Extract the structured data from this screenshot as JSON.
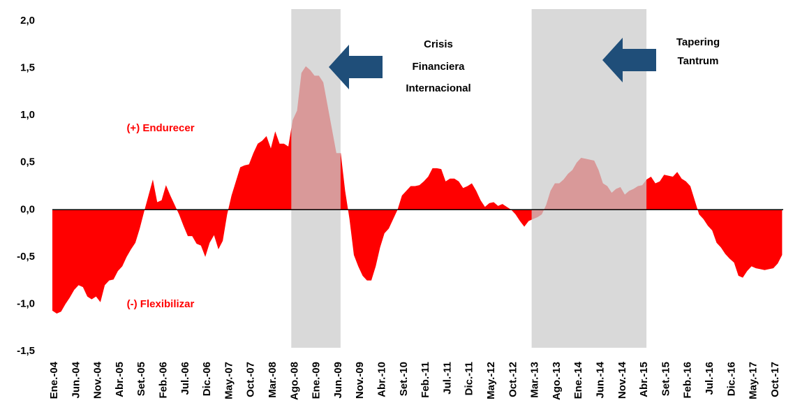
{
  "chart_data": {
    "type": "area",
    "categories": [
      "Ene.-04",
      null,
      null,
      null,
      null,
      "Jun.-04",
      null,
      null,
      null,
      null,
      "Nov.-04",
      null,
      null,
      null,
      null,
      "Abr.-05",
      null,
      null,
      null,
      null,
      "Set.-05",
      null,
      null,
      null,
      null,
      "Feb.-06",
      null,
      null,
      null,
      null,
      "Jul.-06",
      null,
      null,
      null,
      null,
      "Dic.-06",
      null,
      null,
      null,
      null,
      "May.-07",
      null,
      null,
      null,
      null,
      "Oct.-07",
      null,
      null,
      null,
      null,
      "Mar.-08",
      null,
      null,
      null,
      null,
      "Ago.-08",
      null,
      null,
      null,
      null,
      "Ene.-09",
      null,
      null,
      null,
      null,
      "Jun.-09",
      null,
      null,
      null,
      null,
      "Nov.-09",
      null,
      null,
      null,
      null,
      "Abr.-10",
      null,
      null,
      null,
      null,
      "Set.-10",
      null,
      null,
      null,
      null,
      "Feb.-11",
      null,
      null,
      null,
      null,
      "Jul.-11",
      null,
      null,
      null,
      null,
      "Dic.-11",
      null,
      null,
      null,
      null,
      "May.-12",
      null,
      null,
      null,
      null,
      "Oct.-12",
      null,
      null,
      null,
      null,
      "Mar.-13",
      null,
      null,
      null,
      null,
      "Ago.-13",
      null,
      null,
      null,
      null,
      "Ene.-14",
      null,
      null,
      null,
      null,
      "Jun.-14",
      null,
      null,
      null,
      null,
      "Nov.-14",
      null,
      null,
      null,
      null,
      "Abr.-15",
      null,
      null,
      null,
      null,
      "Set.-15",
      null,
      null,
      null,
      null,
      "Feb.-16",
      null,
      null,
      null,
      null,
      "Jul.-16",
      null,
      null,
      null,
      null,
      "Dic.-16",
      null,
      null,
      null,
      null,
      "May.-17",
      null,
      null,
      null,
      null,
      "Oct.-17",
      null,
      null
    ],
    "values": [
      -1.07,
      -1.1,
      -1.08,
      -1.0,
      -0.93,
      -0.85,
      -0.8,
      -0.82,
      -0.92,
      -0.95,
      -0.92,
      -0.98,
      -0.8,
      -0.75,
      -0.74,
      -0.65,
      -0.6,
      -0.5,
      -0.42,
      -0.35,
      -0.2,
      -0.02,
      0.15,
      0.32,
      0.08,
      0.1,
      0.26,
      0.15,
      0.05,
      -0.05,
      -0.17,
      -0.28,
      -0.28,
      -0.36,
      -0.38,
      -0.5,
      -0.35,
      -0.27,
      -0.42,
      -0.33,
      -0.05,
      0.15,
      0.3,
      0.45,
      0.47,
      0.48,
      0.6,
      0.7,
      0.73,
      0.78,
      0.65,
      0.83,
      0.7,
      0.7,
      0.67,
      0.95,
      1.05,
      1.45,
      1.52,
      1.48,
      1.42,
      1.42,
      1.35,
      1.1,
      0.85,
      0.6,
      0.6,
      0.2,
      -0.1,
      -0.48,
      -0.6,
      -0.7,
      -0.75,
      -0.75,
      -0.6,
      -0.4,
      -0.25,
      -0.2,
      -0.1,
      0.0,
      0.15,
      0.2,
      0.25,
      0.25,
      0.26,
      0.3,
      0.35,
      0.44,
      0.44,
      0.43,
      0.3,
      0.33,
      0.33,
      0.3,
      0.23,
      0.25,
      0.28,
      0.2,
      0.1,
      0.03,
      0.07,
      0.08,
      0.04,
      0.06,
      0.03,
      0.0,
      -0.05,
      -0.12,
      -0.18,
      -0.12,
      -0.1,
      -0.08,
      -0.05,
      0.05,
      0.2,
      0.28,
      0.28,
      0.32,
      0.38,
      0.42,
      0.5,
      0.55,
      0.54,
      0.53,
      0.52,
      0.42,
      0.28,
      0.25,
      0.18,
      0.22,
      0.24,
      0.16,
      0.2,
      0.22,
      0.25,
      0.26,
      0.32,
      0.35,
      0.28,
      0.3,
      0.37,
      0.36,
      0.35,
      0.4,
      0.33,
      0.3,
      0.25,
      0.1,
      -0.05,
      -0.1,
      -0.17,
      -0.22,
      -0.35,
      -0.4,
      -0.47,
      -0.52,
      -0.56,
      -0.7,
      -0.72,
      -0.65,
      -0.6,
      -0.62,
      -0.63,
      -0.64,
      -0.63,
      -0.62,
      -0.57,
      -0.48
    ],
    "color": "#ff0000",
    "ylim": [
      -1.5,
      2
    ],
    "yticks": [
      {
        "value": -1.5,
        "label": "-1,5"
      },
      {
        "value": -1,
        "label": "-1,0"
      },
      {
        "value": -0.5,
        "label": "-0,5"
      },
      {
        "value": 0,
        "label": "0,0"
      },
      {
        "value": 0.5,
        "label": "0,5"
      },
      {
        "value": 1,
        "label": "1,0"
      },
      {
        "value": 1.5,
        "label": "1,5"
      },
      {
        "value": 2,
        "label": "2,0"
      }
    ],
    "shaded_periods": [
      {
        "from": "Ago.-08",
        "to": "Jun.-09"
      },
      {
        "from": "Mar.-13",
        "to": "Abr.-15"
      }
    ],
    "annotations": {
      "crisis": [
        "Crisis",
        "Financiera",
        "Internacional"
      ],
      "tapering": [
        "Tapering",
        "Tantrum"
      ],
      "positive": "(+) Endurecer",
      "negative": "(-) Flexibilizar"
    }
  }
}
